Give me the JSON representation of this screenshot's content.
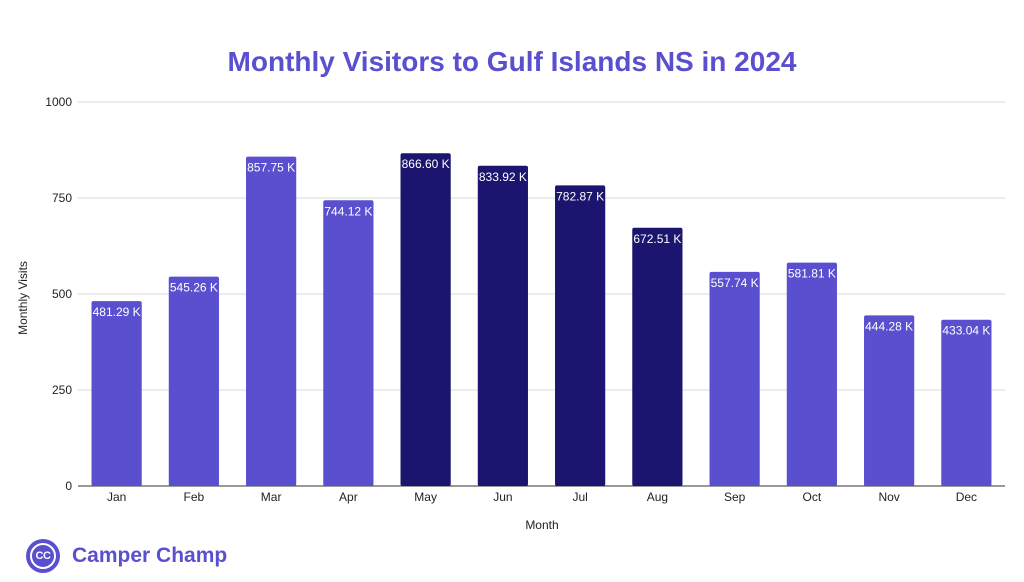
{
  "colors": {
    "title": "#5a4fcf",
    "bar_default": "#5a4fcf",
    "bar_highlight": "#1c1570",
    "grid": "#d9d9d9",
    "axis_text": "#222222",
    "label_text": "#ffffff"
  },
  "brand": {
    "name": "Camper Champ",
    "logo_text": "CC"
  },
  "chart_data": {
    "type": "bar",
    "title": "Monthly Visitors to Gulf Islands NS in 2024",
    "xlabel": "Month",
    "ylabel": "Monthly Visits",
    "ylim": [
      0,
      1000
    ],
    "yticks": [
      0,
      250,
      500,
      750,
      1000
    ],
    "grid": true,
    "categories": [
      "Jan",
      "Feb",
      "Mar",
      "Apr",
      "May",
      "Jun",
      "Jul",
      "Aug",
      "Sep",
      "Oct",
      "Nov",
      "Dec"
    ],
    "values": [
      481.29,
      545.26,
      857.75,
      744.12,
      866.6,
      833.92,
      782.87,
      672.51,
      557.74,
      581.81,
      444.28,
      433.04
    ],
    "value_labels": [
      "481.29 K",
      "545.26 K",
      "857.75 K",
      "744.12 K",
      "866.60 K",
      "833.92 K",
      "782.87 K",
      "672.51 K",
      "557.74 K",
      "581.81 K",
      "444.28 K",
      "433.04 K"
    ],
    "highlighted_categories": [
      "May",
      "Jun",
      "Jul",
      "Aug"
    ]
  }
}
